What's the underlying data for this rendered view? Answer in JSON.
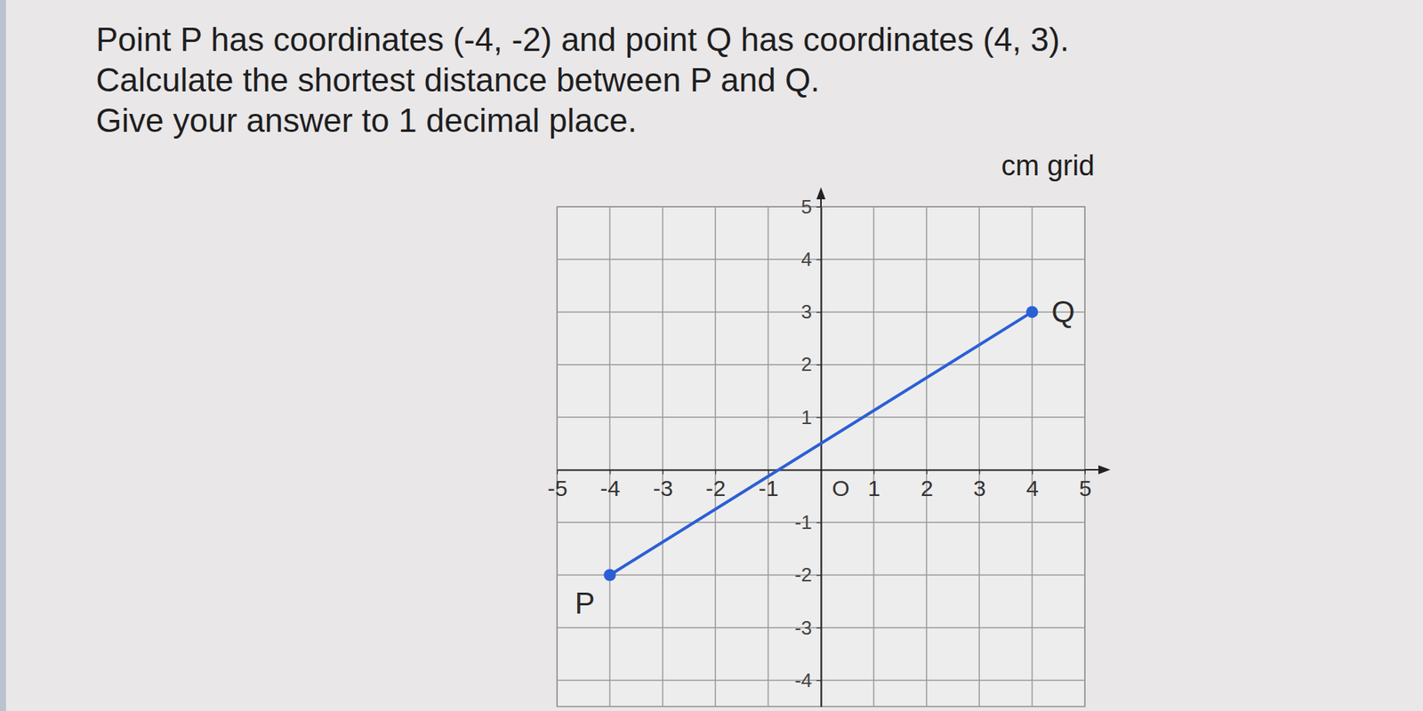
{
  "chart_data": {
    "type": "line",
    "title": [
      "Point P has coordinates (-4, -2) and point Q has coordinates (4, 3).",
      "Calculate the shortest distance between P and Q.",
      "Give your answer to 1 decimal place."
    ],
    "subtitle": "cm grid",
    "x": [
      -4,
      4
    ],
    "series": [
      {
        "color": "#2b5fd6",
        "values": [
          -2,
          3
        ],
        "point_labels": [
          "P",
          "Q"
        ],
        "marker": "circle"
      }
    ],
    "xlim": [
      -5,
      5
    ],
    "ylim": [
      -4.5,
      5
    ],
    "xticks": [
      -5,
      -4,
      -3,
      -2,
      -1,
      {
        "value": 0,
        "label": "O"
      },
      1,
      2,
      3,
      4,
      5
    ],
    "yticks": [
      5,
      4,
      3,
      2,
      1,
      -1,
      -2,
      -3,
      -4
    ],
    "grid": true
  }
}
